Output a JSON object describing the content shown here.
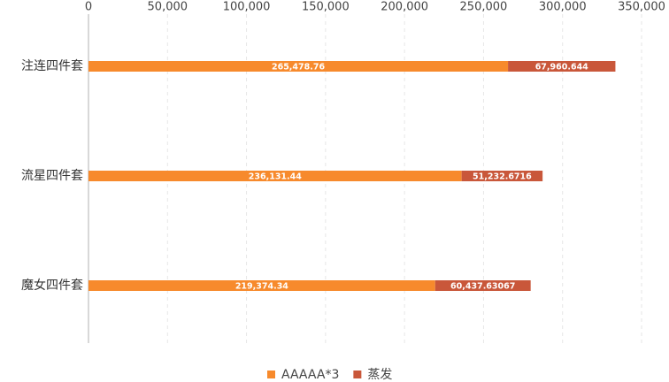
{
  "chart_data": {
    "type": "stacked-bar-horizontal",
    "categories": [
      "注连四件套",
      "流星四件套",
      "魔女四件套"
    ],
    "series": [
      {
        "name": "AAAAA*3",
        "color": "#f78a2c",
        "values": [
          265478.76,
          236131.44,
          219374.34
        ],
        "value_labels": [
          "265,478.76",
          "236,131.44",
          "219,374.34"
        ]
      },
      {
        "name": "蒸发",
        "color": "#c9573a",
        "values": [
          67960.644,
          51232.6716,
          60437.63067
        ],
        "value_labels": [
          "67,960.644",
          "51,232.6716",
          "60,437.63067"
        ]
      }
    ],
    "xlim": [
      0,
      350000
    ],
    "xticks": [
      0,
      {
        "value": 50000,
        "label": "50,000"
      },
      {
        "value": 100000,
        "label": "100,000"
      },
      {
        "value": 150000,
        "label": "150,000"
      },
      {
        "value": 200000,
        "label": "200,000"
      },
      {
        "value": 250000,
        "label": "250,000"
      },
      {
        "value": 300000,
        "label": "300,000"
      },
      {
        "value": 350000,
        "label": "350,000"
      }
    ],
    "grid": true,
    "legend": "bottom"
  }
}
